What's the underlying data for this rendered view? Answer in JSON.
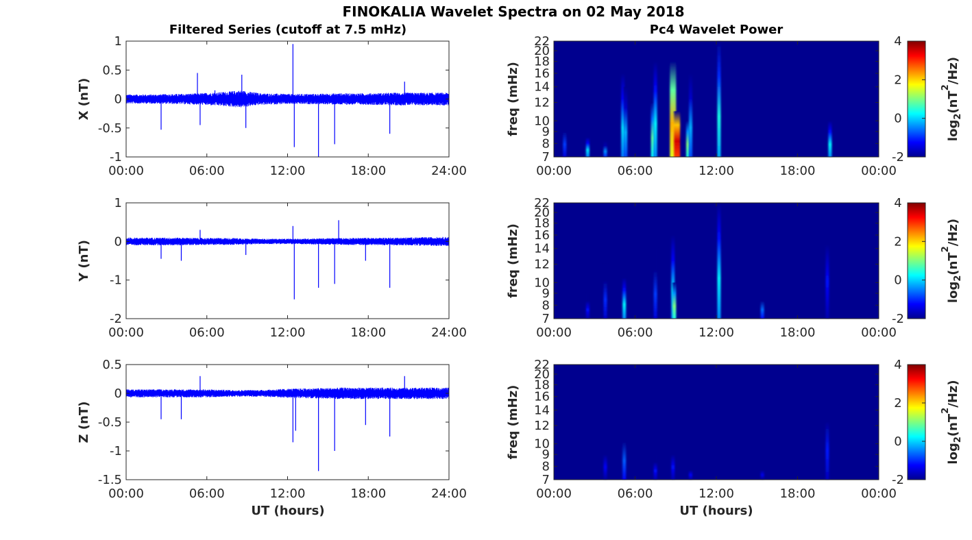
{
  "figure": {
    "title": "FINOKALIA Wavelet Spectra on 02 May 2018",
    "left_title": "Filtered Series (cutoff at 7.5 mHz)",
    "right_title": "Pc4 Wavelet Power",
    "xlabel": "UT (hours)",
    "colorbar_label_prefix": "log",
    "colorbar_label_sub": "2",
    "colorbar_label_mid": "(nT",
    "colorbar_label_sup": "2",
    "colorbar_label_suffix": "/Hz)",
    "series_color": "#0000ff",
    "spectrum_background": "#00008f"
  },
  "chart_data": [
    {
      "type": "line",
      "panel": "X",
      "ylabel": "X (nT)",
      "ylim": [
        -1,
        1
      ],
      "yticks": [
        1,
        0.5,
        0,
        -0.5,
        -1
      ],
      "ytick_labels": [
        "1",
        "0.5",
        "0",
        "-0.5",
        "-1"
      ],
      "xlim": [
        0,
        24
      ],
      "xticks": [
        0,
        6,
        12,
        18,
        24
      ],
      "xtick_labels": [
        "00:00",
        "06:00",
        "12:00",
        "18:00",
        "24:00"
      ],
      "noise_envelope": [
        [
          0,
          0.08
        ],
        [
          2,
          0.08
        ],
        [
          4,
          0.09
        ],
        [
          5.5,
          0.1
        ],
        [
          7,
          0.12
        ],
        [
          8.5,
          0.15
        ],
        [
          10,
          0.1
        ],
        [
          12,
          0.09
        ],
        [
          14,
          0.09
        ],
        [
          16,
          0.1
        ],
        [
          18,
          0.1
        ],
        [
          20,
          0.11
        ],
        [
          22,
          0.11
        ],
        [
          24,
          0.11
        ]
      ],
      "spikes": [
        [
          2.6,
          -0.53
        ],
        [
          5.3,
          0.45
        ],
        [
          5.5,
          -0.45
        ],
        [
          6.6,
          0.15
        ],
        [
          8.6,
          0.42
        ],
        [
          8.9,
          -0.5
        ],
        [
          12.4,
          0.95
        ],
        [
          12.5,
          -0.83
        ],
        [
          14.3,
          -1.0
        ],
        [
          15.5,
          -0.78
        ],
        [
          19.6,
          -0.6
        ],
        [
          20.7,
          0.3
        ]
      ]
    },
    {
      "type": "line",
      "panel": "Y",
      "ylabel": "Y (nT)",
      "ylim": [
        -2,
        1
      ],
      "yticks": [
        1,
        0,
        -1,
        -2
      ],
      "ytick_labels": [
        "1",
        "0",
        "-1",
        "-2"
      ],
      "xlim": [
        0,
        24
      ],
      "xticks": [
        0,
        6,
        12,
        18,
        24
      ],
      "xtick_labels": [
        "00:00",
        "06:00",
        "12:00",
        "18:00",
        "24:00"
      ],
      "noise_envelope": [
        [
          0,
          0.1
        ],
        [
          4,
          0.1
        ],
        [
          6,
          0.09
        ],
        [
          8,
          0.09
        ],
        [
          10,
          0.07
        ],
        [
          12,
          0.07
        ],
        [
          16,
          0.09
        ],
        [
          20,
          0.1
        ],
        [
          24,
          0.12
        ]
      ],
      "spikes": [
        [
          2.6,
          -0.45
        ],
        [
          4.1,
          -0.5
        ],
        [
          5.5,
          0.3
        ],
        [
          8.9,
          -0.35
        ],
        [
          12.4,
          0.4
        ],
        [
          12.5,
          -1.5
        ],
        [
          14.3,
          -1.2
        ],
        [
          15.5,
          -1.1
        ],
        [
          15.8,
          0.55
        ],
        [
          17.8,
          -0.5
        ],
        [
          19.6,
          -1.2
        ]
      ]
    },
    {
      "type": "line",
      "panel": "Z",
      "ylabel": "Z (nT)",
      "ylim": [
        -1.5,
        0.5
      ],
      "yticks": [
        0.5,
        0,
        -0.5,
        -1,
        -1.5
      ],
      "ytick_labels": [
        "0.5",
        "0",
        "-0.5",
        "-1",
        "-1.5"
      ],
      "xlim": [
        0,
        24
      ],
      "xticks": [
        0,
        6,
        12,
        18,
        24
      ],
      "xtick_labels": [
        "00:00",
        "06:00",
        "12:00",
        "18:00",
        "24:00"
      ],
      "noise_envelope": [
        [
          0,
          0.07
        ],
        [
          4,
          0.07
        ],
        [
          6,
          0.07
        ],
        [
          8,
          0.06
        ],
        [
          10,
          0.06
        ],
        [
          12,
          0.08
        ],
        [
          16,
          0.1
        ],
        [
          20,
          0.1
        ],
        [
          24,
          0.1
        ]
      ],
      "spikes": [
        [
          2.6,
          -0.45
        ],
        [
          4.1,
          -0.45
        ],
        [
          5.5,
          0.3
        ],
        [
          12.4,
          -0.85
        ],
        [
          12.6,
          -0.65
        ],
        [
          14.3,
          -1.35
        ],
        [
          15.5,
          -1.0
        ],
        [
          17.8,
          -0.55
        ],
        [
          19.6,
          -0.75
        ],
        [
          20.7,
          0.3
        ]
      ]
    },
    {
      "type": "heatmap",
      "panel": "X",
      "ylabel": "freq (mHz)",
      "ylim": [
        7,
        22
      ],
      "yscale": "log",
      "yticks": [
        22,
        20,
        18,
        16,
        14,
        12,
        10,
        9,
        8,
        7
      ],
      "ytick_labels": [
        "22",
        "20",
        "18",
        "16",
        "14",
        "12",
        "10",
        "9",
        "8",
        "7"
      ],
      "xlim": [
        0,
        24
      ],
      "xticks": [
        0,
        6,
        12,
        18,
        24
      ],
      "xtick_labels": [
        "00:00",
        "06:00",
        "12:00",
        "18:00",
        "00:00"
      ],
      "colorbar": {
        "range": [
          -2,
          4
        ],
        "ticks": [
          4,
          2,
          0,
          -2
        ],
        "tick_labels": [
          "4",
          "2",
          "0",
          "-2"
        ]
      },
      "bursts": [
        [
          0.8,
          7,
          10,
          -0.9
        ],
        [
          2.5,
          7,
          8.5,
          0.1
        ],
        [
          3.8,
          7,
          8.2,
          -0.4
        ],
        [
          5.1,
          7,
          16,
          0.1
        ],
        [
          5.3,
          7,
          14,
          -0.2
        ],
        [
          7.3,
          7,
          12,
          0.8
        ],
        [
          7.5,
          7,
          18,
          0.2
        ],
        [
          8.8,
          7,
          18,
          2.2
        ],
        [
          9.1,
          7,
          11,
          3.5
        ],
        [
          9.9,
          7,
          10,
          1.0
        ],
        [
          10.1,
          7,
          16,
          -0.2
        ],
        [
          12.2,
          7,
          22,
          0.4
        ],
        [
          20.4,
          7,
          10,
          0.2
        ]
      ]
    },
    {
      "type": "heatmap",
      "panel": "Y",
      "ylabel": "freq (mHz)",
      "ylim": [
        7,
        22
      ],
      "yscale": "log",
      "yticks": [
        22,
        20,
        18,
        16,
        14,
        12,
        10,
        9,
        8,
        7
      ],
      "ytick_labels": [
        "22",
        "20",
        "18",
        "16",
        "14",
        "12",
        "10",
        "9",
        "8",
        "7"
      ],
      "xlim": [
        0,
        24
      ],
      "xticks": [
        0,
        6,
        12,
        18,
        24
      ],
      "xtick_labels": [
        "00:00",
        "06:00",
        "12:00",
        "18:00",
        "00:00"
      ],
      "colorbar": {
        "range": [
          -2,
          4
        ],
        "ticks": [
          4,
          2,
          0,
          -2
        ],
        "tick_labels": [
          "4",
          "2",
          "0",
          "-2"
        ]
      },
      "bursts": [
        [
          2.5,
          7,
          9,
          -1.2
        ],
        [
          3.8,
          7,
          12,
          -1.0
        ],
        [
          5.2,
          7,
          10.5,
          0.2
        ],
        [
          7.5,
          7,
          14,
          -0.9
        ],
        [
          8.8,
          7,
          16,
          0.1
        ],
        [
          8.9,
          7,
          10,
          1.0
        ],
        [
          12.2,
          7,
          22,
          0.2
        ],
        [
          15.4,
          7,
          9,
          -0.6
        ],
        [
          20.2,
          7,
          20,
          -1.2
        ]
      ]
    },
    {
      "type": "heatmap",
      "panel": "Z",
      "ylabel": "freq (mHz)",
      "ylim": [
        7,
        22
      ],
      "yscale": "log",
      "yticks": [
        22,
        20,
        18,
        16,
        14,
        12,
        10,
        9,
        8,
        7
      ],
      "ytick_labels": [
        "22",
        "20",
        "18",
        "16",
        "14",
        "12",
        "10",
        "9",
        "8",
        "7"
      ],
      "xlim": [
        0,
        24
      ],
      "xticks": [
        0,
        6,
        12,
        18,
        24
      ],
      "xtick_labels": [
        "00:00",
        "06:00",
        "12:00",
        "18:00",
        "00:00"
      ],
      "colorbar": {
        "range": [
          -2,
          4
        ],
        "ticks": [
          4,
          2,
          0,
          -2
        ],
        "tick_labels": [
          "4",
          "2",
          "0",
          "-2"
        ]
      },
      "bursts": [
        [
          3.8,
          7,
          10,
          -1.3
        ],
        [
          5.2,
          7,
          12,
          -0.7
        ],
        [
          7.5,
          7,
          9,
          -1.2
        ],
        [
          8.8,
          7,
          10,
          -1.2
        ],
        [
          10.1,
          7,
          8,
          -1.3
        ],
        [
          15.4,
          7,
          8,
          -1.4
        ],
        [
          20.2,
          7,
          16,
          -1.1
        ]
      ]
    }
  ]
}
